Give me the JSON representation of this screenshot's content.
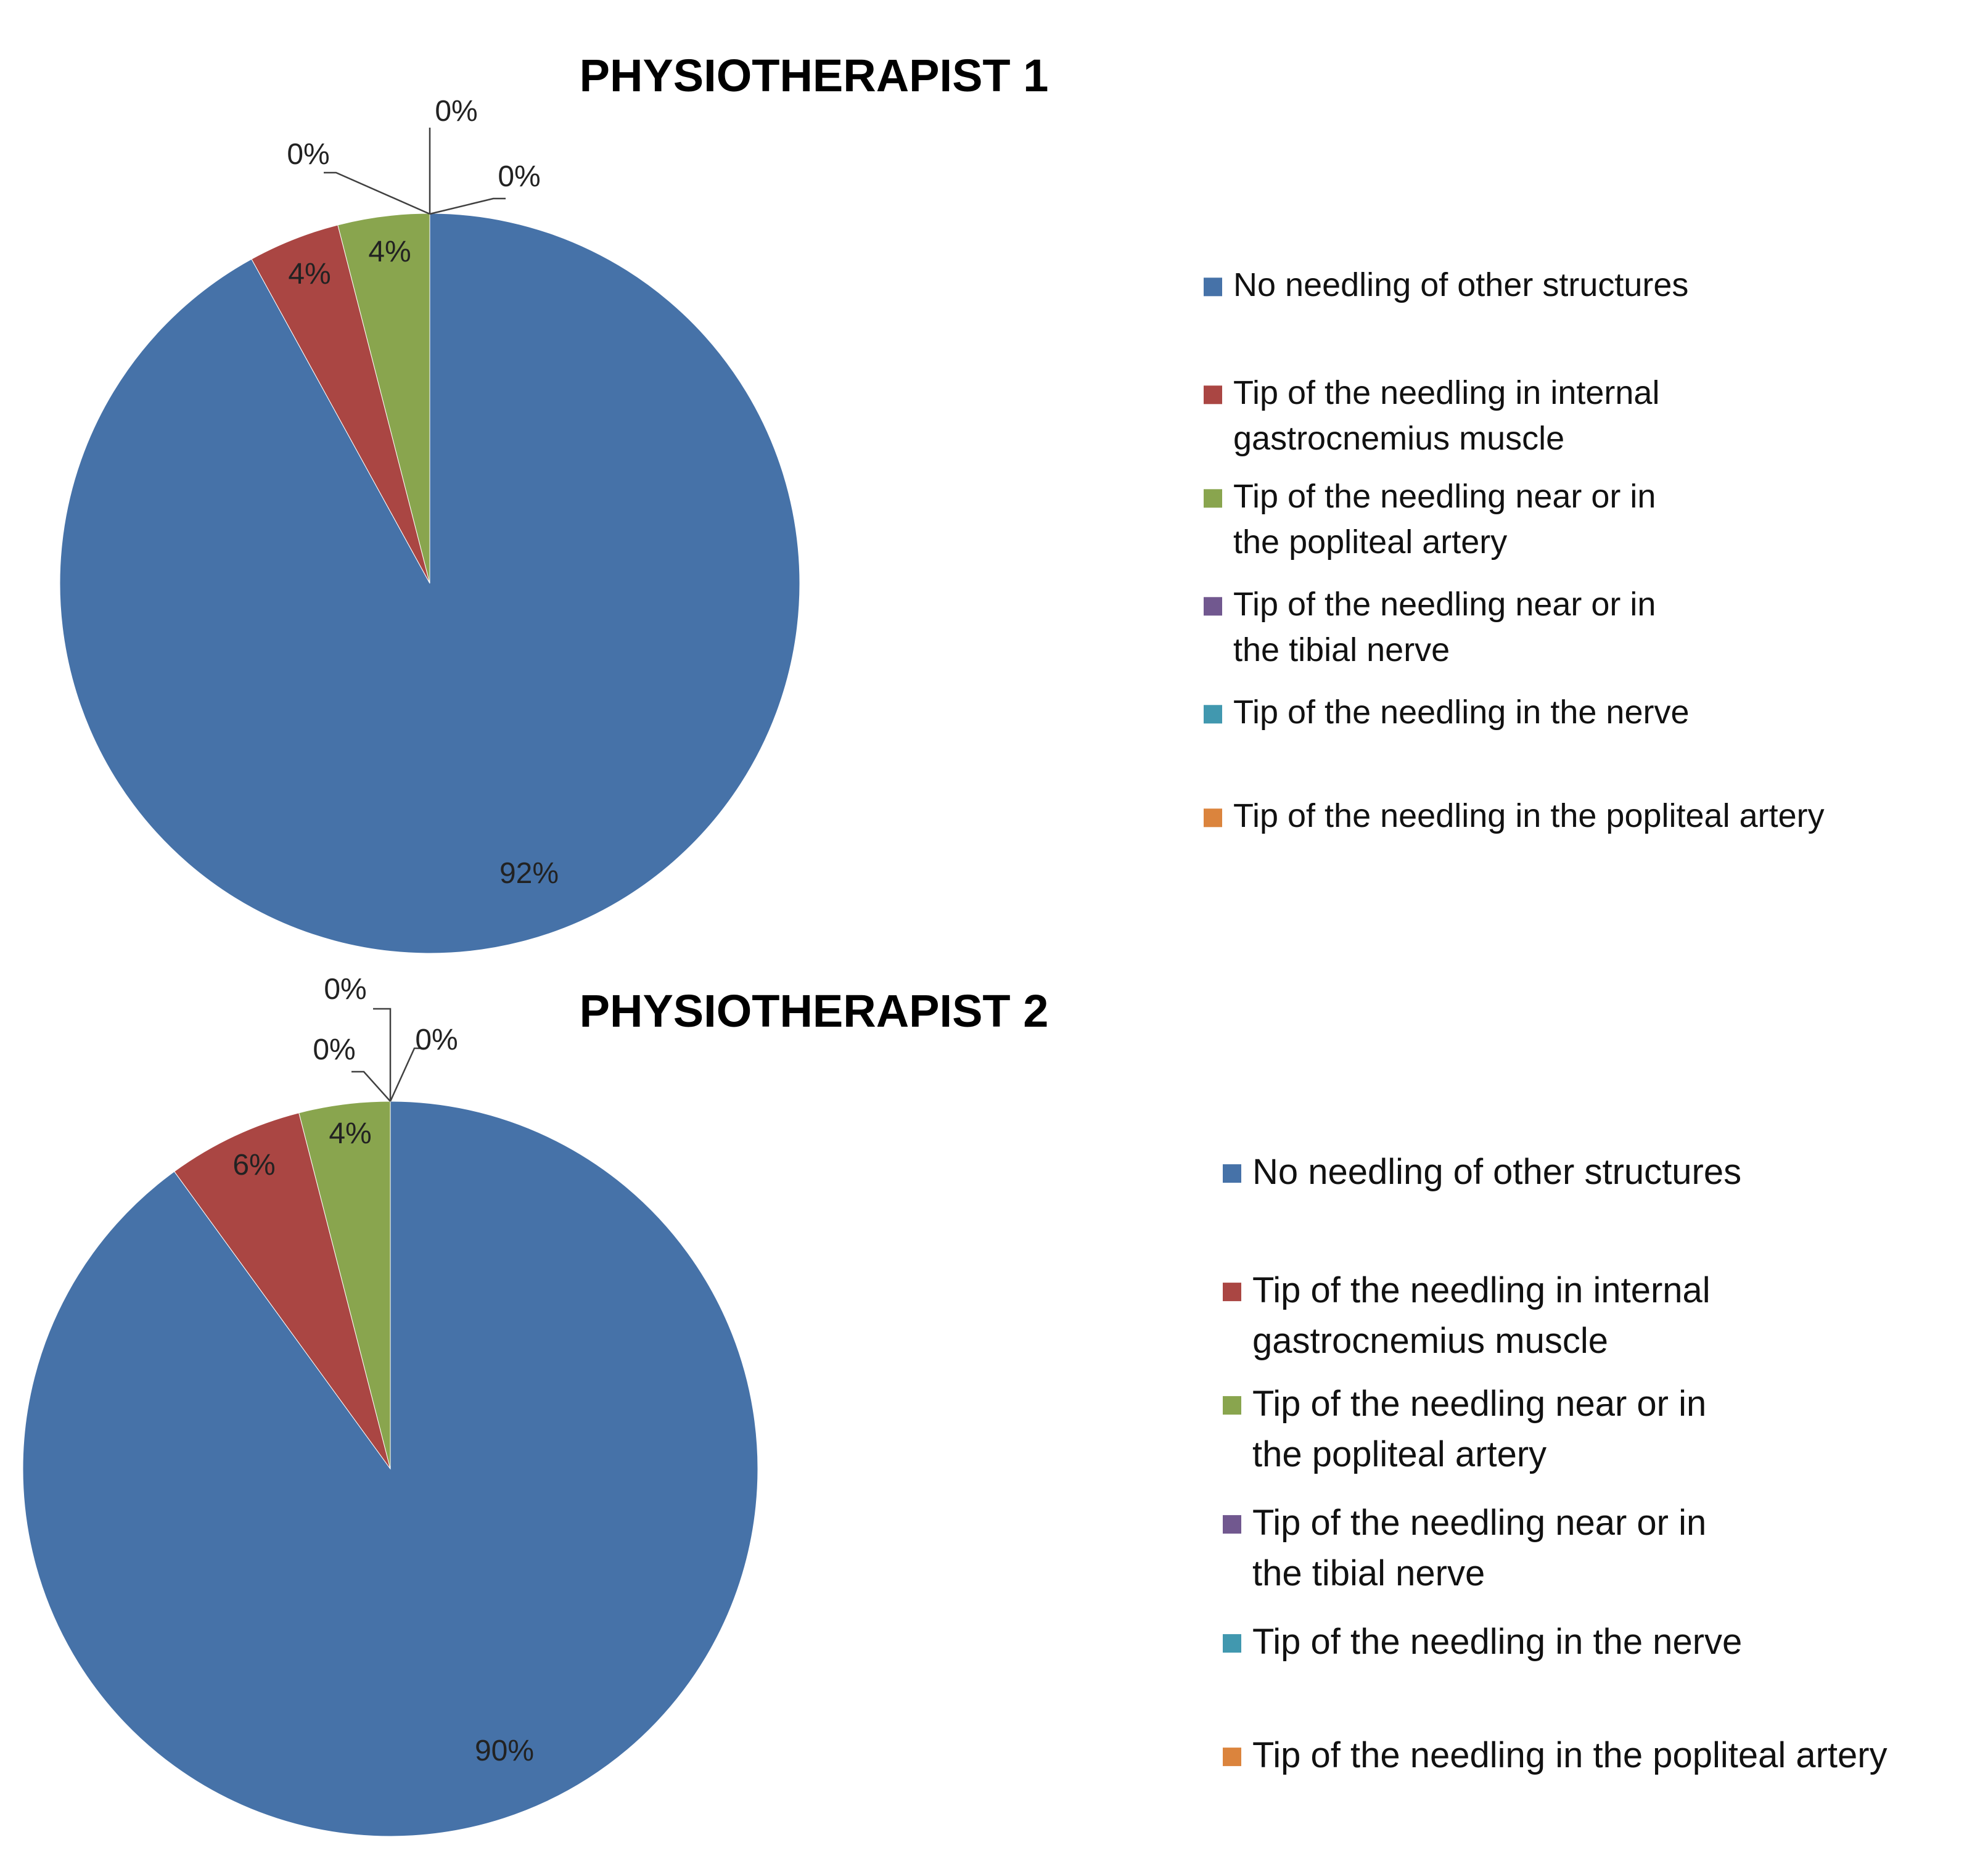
{
  "chart_data": [
    {
      "type": "pie",
      "title": "PHYSIOTHERAPIST 1",
      "categories": [
        "No needling of other structures",
        "Tip of the needling in internal gastrocnemius muscle",
        "Tip of the needling near or in the popliteal artery",
        "Tip of the needling near or in the tibial nerve",
        "Tip of the needling in the nerve",
        "Tip of the needling in the popliteal artery"
      ],
      "legend_lines": [
        [
          "No needling of other structures"
        ],
        [
          "Tip of the needling in internal",
          "gastrocnemius muscle"
        ],
        [
          "Tip of the needling near or in",
          "the popliteal artery"
        ],
        [
          "Tip of the needling near or in",
          "the tibial nerve"
        ],
        [
          "Tip of the needling in the nerve"
        ],
        [
          "Tip of the needling in the popliteal artery"
        ]
      ],
      "values": [
        92,
        4,
        4,
        0,
        0,
        0
      ],
      "data_labels": [
        "92%",
        "4%",
        "4%",
        "0%",
        "0%",
        "0%"
      ],
      "colors": [
        "#4672a8",
        "#aa4643",
        "#89a54e",
        "#71588f",
        "#4198af",
        "#db843d"
      ],
      "legend_position": "right"
    },
    {
      "type": "pie",
      "title": "PHYSIOTHERAPIST 2",
      "categories": [
        "No needling of other structures",
        "Tip of the needling in internal gastrocnemius muscle",
        "Tip of the needling near or in the popliteal artery",
        "Tip of the needling near or in the tibial nerve",
        "Tip of the needling in the nerve",
        "Tip of the needling in the popliteal artery"
      ],
      "legend_lines": [
        [
          "No needling of other structures"
        ],
        [
          "Tip of the needling in internal",
          "gastrocnemius muscle"
        ],
        [
          "Tip of the needling near or in",
          "the popliteal artery"
        ],
        [
          "Tip of the needling near or in",
          "the tibial nerve"
        ],
        [
          "Tip of the needling in the nerve"
        ],
        [
          "Tip of the needling in the popliteal artery"
        ]
      ],
      "values": [
        90,
        6,
        4,
        0,
        0,
        0
      ],
      "data_labels": [
        "90%",
        "6%",
        "4%",
        "0%",
        "0%",
        "0%"
      ],
      "colors": [
        "#4672a8",
        "#aa4643",
        "#89a54e",
        "#71588f",
        "#4198af",
        "#db843d"
      ],
      "legend_position": "right"
    }
  ]
}
